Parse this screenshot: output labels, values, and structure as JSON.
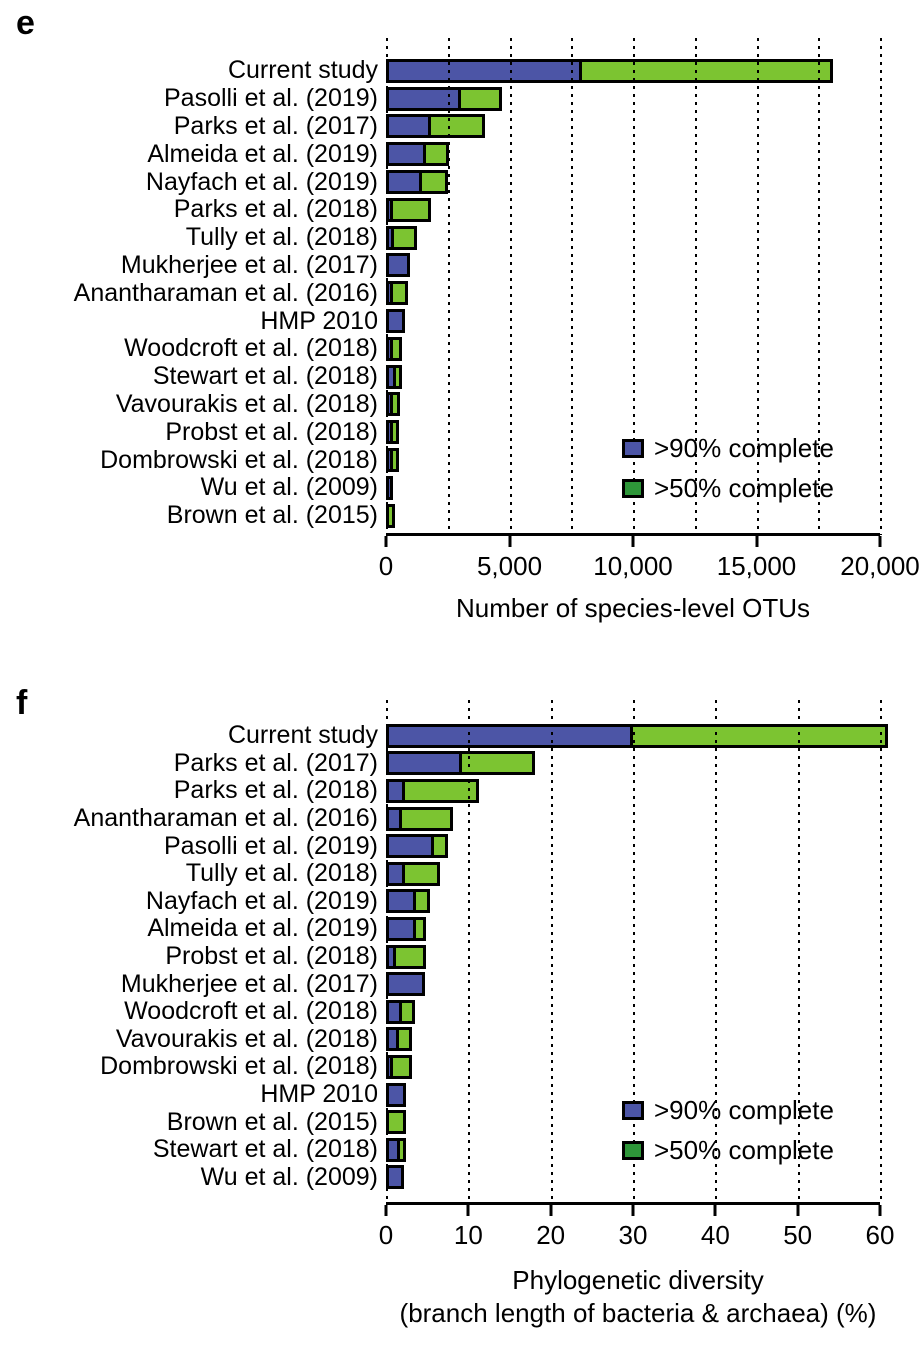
{
  "figure": {
    "panels": [
      {
        "letter": "e",
        "xlabel": "Number of species-level OTUs",
        "legend": [
          {
            "label": ">90% complete",
            "color": "#4c55a6"
          },
          {
            "label": ">50% complete",
            "color": "#2e9639"
          }
        ]
      },
      {
        "letter": "f",
        "xlabel_line1": "Phylogenetic diversity",
        "xlabel_line2": "(branch length of bacteria & archaea) (%)",
        "legend": [
          {
            "label": ">90% complete",
            "color": "#4c55a6"
          },
          {
            "label": ">50% complete",
            "color": "#2e9639"
          }
        ]
      }
    ]
  },
  "chart_data": [
    {
      "type": "bar",
      "panel": "e",
      "orientation": "horizontal",
      "stacked": true,
      "xlabel": "Number of species-level OTUs",
      "ylabel": "",
      "xlim": [
        0,
        20000
      ],
      "xticks": [
        0,
        5000,
        10000,
        15000,
        20000
      ],
      "xtick_labels": [
        "0",
        "5,000",
        "10,000",
        "15,000",
        "20,000"
      ],
      "gridline_step": 2500,
      "grid": "dotted-vertical",
      "legend_position": "inside-right",
      "categories": [
        "Current study",
        "Pasolli et al. (2019)",
        "Parks et al. (2017)",
        "Almeida et al. (2019)",
        "Nayfach et al. (2019)",
        "Parks et al. (2018)",
        "Tully et al. (2018)",
        "Mukherjee et al. (2017)",
        "Anantharaman et al. (2016)",
        "HMP 2010",
        "Woodcroft et al. (2018)",
        "Stewart et al. (2018)",
        "Vavourakis et al. (2018)",
        "Probst et al. (2018)",
        "Dombrowski et al. (2018)",
        "Wu et al. (2009)",
        "Brown et al. (2015)"
      ],
      "series": [
        {
          "name": ">90% complete",
          "color": "#4c55a6",
          "values": [
            7950,
            3020,
            1830,
            1620,
            1450,
            260,
            310,
            980,
            150,
            770,
            200,
            385,
            75,
            100,
            80,
            250,
            0
          ]
        },
        {
          "name": ">50% complete (additional)",
          "color": "#7cc431",
          "values": [
            10150,
            1680,
            2170,
            930,
            1050,
            1570,
            950,
            0,
            760,
            0,
            430,
            110,
            485,
            315,
            265,
            0,
            225
          ]
        }
      ]
    },
    {
      "type": "bar",
      "panel": "f",
      "orientation": "horizontal",
      "stacked": true,
      "xlabel": "Phylogenetic diversity (branch length of bacteria & archaea) (%)",
      "ylabel": "",
      "xlim": [
        0,
        60
      ],
      "xticks": [
        0,
        10,
        20,
        30,
        40,
        50,
        60
      ],
      "xtick_labels": [
        "0",
        "10",
        "20",
        "30",
        "40",
        "50",
        "60"
      ],
      "gridline_step": 10,
      "grid": "dotted-vertical",
      "legend_position": "inside-right",
      "categories": [
        "Current study",
        "Parks et al. (2017)",
        "Parks et al. (2018)",
        "Anantharaman et al. (2016)",
        "Pasolli et al. (2019)",
        "Tully et al. (2018)",
        "Nayfach et al. (2019)",
        "Almeida et al. (2019)",
        "Probst et al. (2018)",
        "Mukherjee et al. (2017)",
        "Woodcroft et al. (2018)",
        "Vavourakis et al. (2018)",
        "Dombrowski et al. (2018)",
        "HMP 2010",
        "Brown et al. (2015)",
        "Stewart et al. (2018)",
        "Wu et al. (2009)"
      ],
      "series": [
        {
          "name": ">90% complete",
          "color": "#4c55a6",
          "values": [
            30,
            9.2,
            2.3,
            1.9,
            5.8,
            2.3,
            3.6,
            3.7,
            1.2,
            4.7,
            1.9,
            1.6,
            0.5,
            2.4,
            0,
            1.7,
            2.2
          ]
        },
        {
          "name": ">50% complete (additional)",
          "color": "#7cc431",
          "values": [
            31,
            8.9,
            9.0,
            6.2,
            1.7,
            4.2,
            1.8,
            1.1,
            3.6,
            0,
            1.6,
            1.6,
            2.6,
            0,
            2.4,
            0.6,
            0
          ]
        }
      ]
    }
  ]
}
